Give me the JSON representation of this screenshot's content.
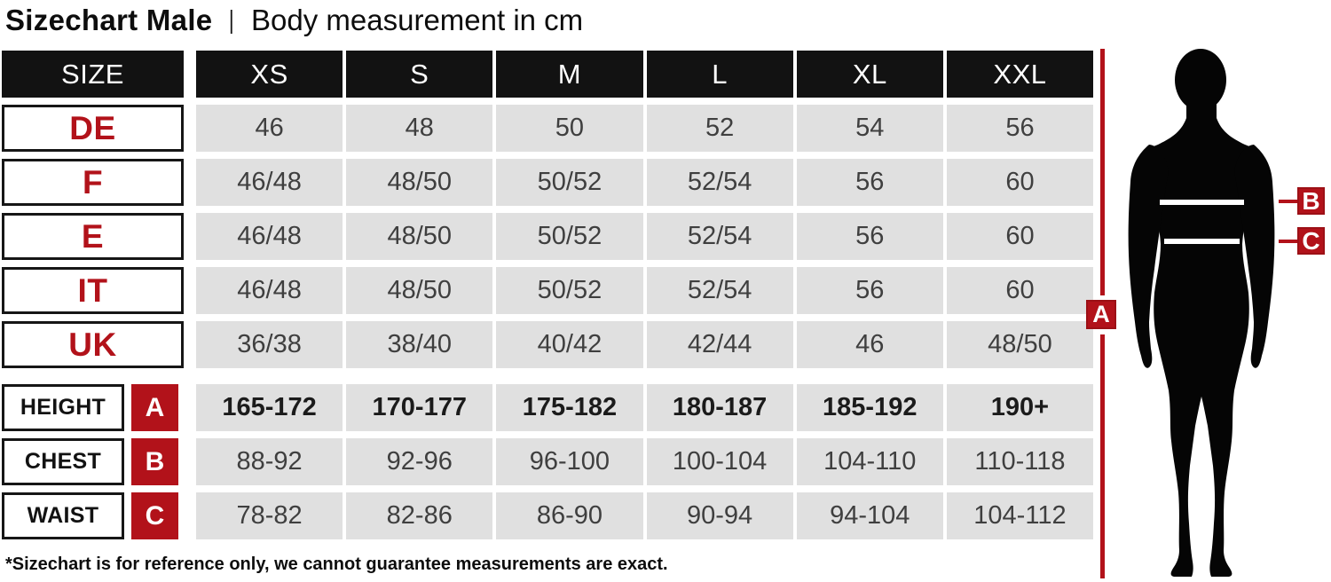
{
  "title": {
    "main": "Sizechart Male",
    "separator": "|",
    "subtitle": "Body measurement in cm"
  },
  "colors": {
    "accent_red": "#b2121a",
    "header_black": "#121212",
    "cell_gray": "#e0e0e0",
    "value_text": "#3f3f3f"
  },
  "chart_data": {
    "type": "table",
    "title": "Sizechart Male | Body measurement in cm",
    "corner_label": "SIZE",
    "columns": [
      "XS",
      "S",
      "M",
      "L",
      "XL",
      "XXL"
    ],
    "region_rows": [
      {
        "label": "DE",
        "values": [
          "46",
          "48",
          "50",
          "52",
          "54",
          "56"
        ]
      },
      {
        "label": "F",
        "values": [
          "46/48",
          "48/50",
          "50/52",
          "52/54",
          "56",
          "60"
        ]
      },
      {
        "label": "E",
        "values": [
          "46/48",
          "48/50",
          "50/52",
          "52/54",
          "56",
          "60"
        ]
      },
      {
        "label": "IT",
        "values": [
          "46/48",
          "48/50",
          "50/52",
          "52/54",
          "56",
          "60"
        ]
      },
      {
        "label": "UK",
        "values": [
          "36/38",
          "38/40",
          "40/42",
          "42/44",
          "46",
          "48/50"
        ]
      }
    ],
    "measurement_rows": [
      {
        "label": "HEIGHT",
        "marker": "A",
        "bold": true,
        "values": [
          "165-172",
          "170-177",
          "175-182",
          "180-187",
          "185-192",
          "190+"
        ]
      },
      {
        "label": "CHEST",
        "marker": "B",
        "bold": false,
        "values": [
          "88-92",
          "92-96",
          "96-100",
          "100-104",
          "104-110",
          "110-118"
        ]
      },
      {
        "label": "WAIST",
        "marker": "C",
        "bold": false,
        "values": [
          "78-82",
          "82-86",
          "86-90",
          "90-94",
          "94-104",
          "104-112"
        ]
      }
    ],
    "footnote": "*Sizechart is for reference only, we cannot guarantee measurements are exact."
  },
  "figure": {
    "markers": {
      "a": "A",
      "b": "B",
      "c": "C"
    }
  }
}
